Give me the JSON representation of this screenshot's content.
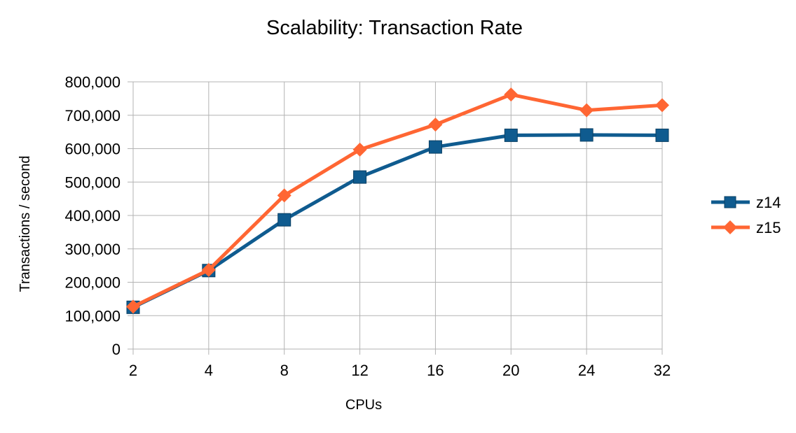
{
  "chart_data": {
    "type": "line",
    "title": "Scalability: Transaction Rate",
    "xlabel": "CPUs",
    "ylabel": "Transactions  /  second",
    "categories": [
      "2",
      "4",
      "8",
      "12",
      "16",
      "20",
      "24",
      "32"
    ],
    "ylim": [
      0,
      800000
    ],
    "yticks": [
      0,
      100000,
      200000,
      300000,
      400000,
      500000,
      600000,
      700000,
      800000
    ],
    "ytick_labels": [
      "0",
      "100,000",
      "200,000",
      "300,000",
      "400,000",
      "500,000",
      "600,000",
      "700,000",
      "800,000"
    ],
    "grid": true,
    "legend_position": "right",
    "series": [
      {
        "name": "z14",
        "marker": "square",
        "color": "#0f5b8f",
        "values": [
          125000,
          235000,
          387000,
          515000,
          605000,
          640000,
          641000,
          640000
        ]
      },
      {
        "name": "z15",
        "marker": "diamond",
        "color": "#ff6633",
        "values": [
          127000,
          237000,
          460000,
          597000,
          672000,
          762000,
          715000,
          730000
        ]
      }
    ]
  }
}
